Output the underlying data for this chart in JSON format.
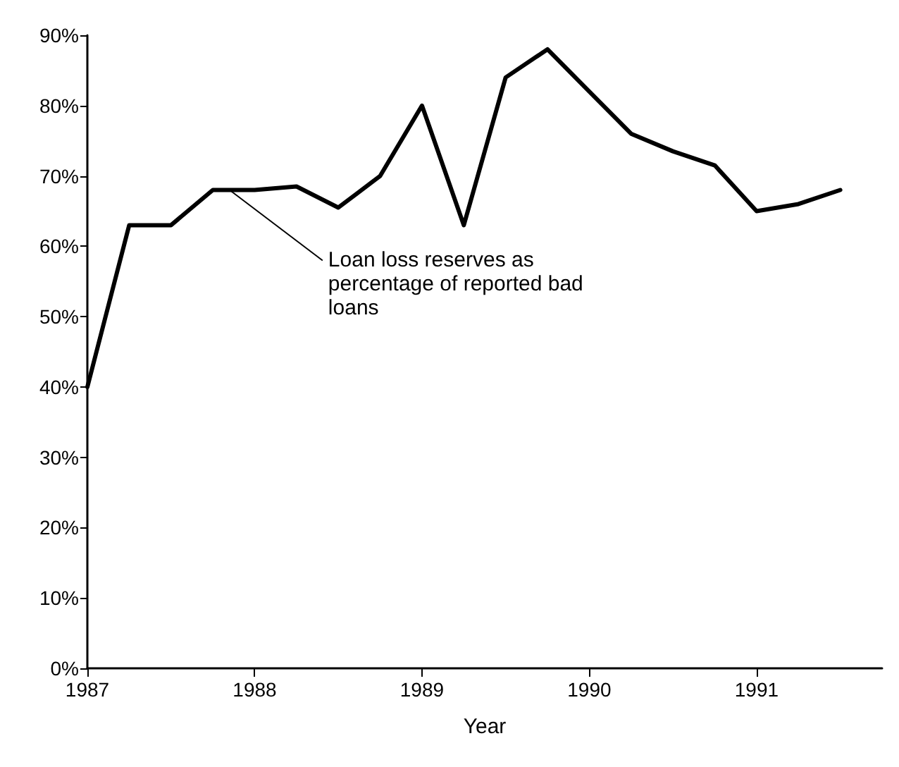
{
  "chart_data": {
    "type": "line",
    "xlabel": "Year",
    "x": [
      1987,
      1987.25,
      1987.5,
      1987.75,
      1988,
      1988.25,
      1988.5,
      1988.75,
      1989,
      1989.25,
      1989.5,
      1989.75,
      1990,
      1990.25,
      1990.5,
      1990.75,
      1991,
      1991.25,
      1991.5
    ],
    "series": [
      {
        "color": "#000000",
        "values": [
          40,
          63,
          63,
          68,
          68,
          68.5,
          65.5,
          70,
          80,
          63,
          84,
          88,
          82,
          76,
          73.5,
          71.5,
          65,
          66,
          68
        ]
      }
    ],
    "xlim": [
      1987,
      1991.75
    ],
    "xticks": [
      1987,
      1988,
      1989,
      1990,
      1991
    ],
    "ylim": [
      0,
      90
    ],
    "yticks": [
      {
        "value": 0,
        "label": "0%"
      },
      {
        "value": 10,
        "label": "10%"
      },
      {
        "value": 20,
        "label": "20%"
      },
      {
        "value": 30,
        "label": "30%"
      },
      {
        "value": 40,
        "label": "40%"
      },
      {
        "value": 50,
        "label": "50%"
      },
      {
        "value": 60,
        "label": "60%"
      },
      {
        "value": 70,
        "label": "70%"
      },
      {
        "value": 80,
        "label": "80%"
      },
      {
        "value": 90,
        "label": "90%"
      }
    ],
    "annotations": [
      {
        "text": "Loan loss reserves as percentage of reported bad loans",
        "x": 1987.85,
        "y": 68
      }
    ],
    "grid": false,
    "marker": "none",
    "line_style": "solid"
  }
}
